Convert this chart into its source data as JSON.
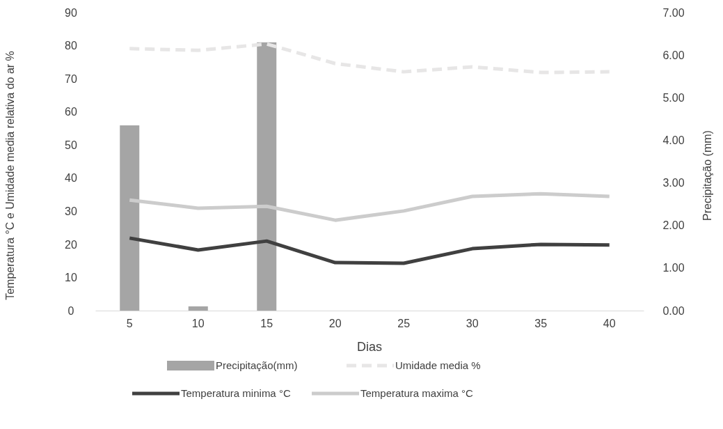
{
  "chart_data": {
    "type": "line",
    "xlabel": "Dias",
    "ylabel": "Temperatura  °C e  Umidade media relativa do ar %",
    "y2label": "Precipitação  (mm)",
    "categories": [
      "5",
      "10",
      "15",
      "20",
      "25",
      "30",
      "35",
      "40"
    ],
    "series": [
      {
        "name": "Precipitação(mm)",
        "type": "bar",
        "axis": "y2",
        "color": "#a5a5a5",
        "values": [
          4.35,
          0.1,
          6.3,
          null,
          null,
          null,
          null,
          null
        ]
      },
      {
        "name": "Umidade media %",
        "line_style": "dashed",
        "color": "#e7e6e6",
        "values": [
          79.1,
          78.6,
          80.5,
          74.6,
          72.1,
          73.6,
          71.9,
          72.1
        ]
      },
      {
        "name": "Temperatura minima °C",
        "line_style": "solid",
        "color": "#404040",
        "values": [
          21.9,
          18.3,
          21.0,
          14.5,
          14.3,
          18.7,
          20.0,
          19.8
        ]
      },
      {
        "name": "Temperatura  maxima °C",
        "line_style": "solid",
        "color": "#cccccc",
        "values": [
          33.4,
          30.9,
          31.5,
          27.3,
          30.1,
          34.5,
          35.3,
          34.5
        ]
      }
    ],
    "ylim": [
      0,
      90
    ],
    "yticks": [
      0,
      10,
      20,
      30,
      40,
      50,
      60,
      70,
      80,
      90
    ],
    "y2lim": [
      0,
      7
    ],
    "y2ticks": [
      {
        "value": 0,
        "label": "0.00"
      },
      {
        "value": 1,
        "label": "1.00"
      },
      {
        "value": 2,
        "label": "2.00"
      },
      {
        "value": 3,
        "label": "3.00"
      },
      {
        "value": 4,
        "label": "4.00"
      },
      {
        "value": 5,
        "label": "5.00"
      },
      {
        "value": 6,
        "label": "6.00"
      },
      {
        "value": 7,
        "label": "7.00"
      }
    ],
    "grid": false,
    "legend": "bottom"
  }
}
